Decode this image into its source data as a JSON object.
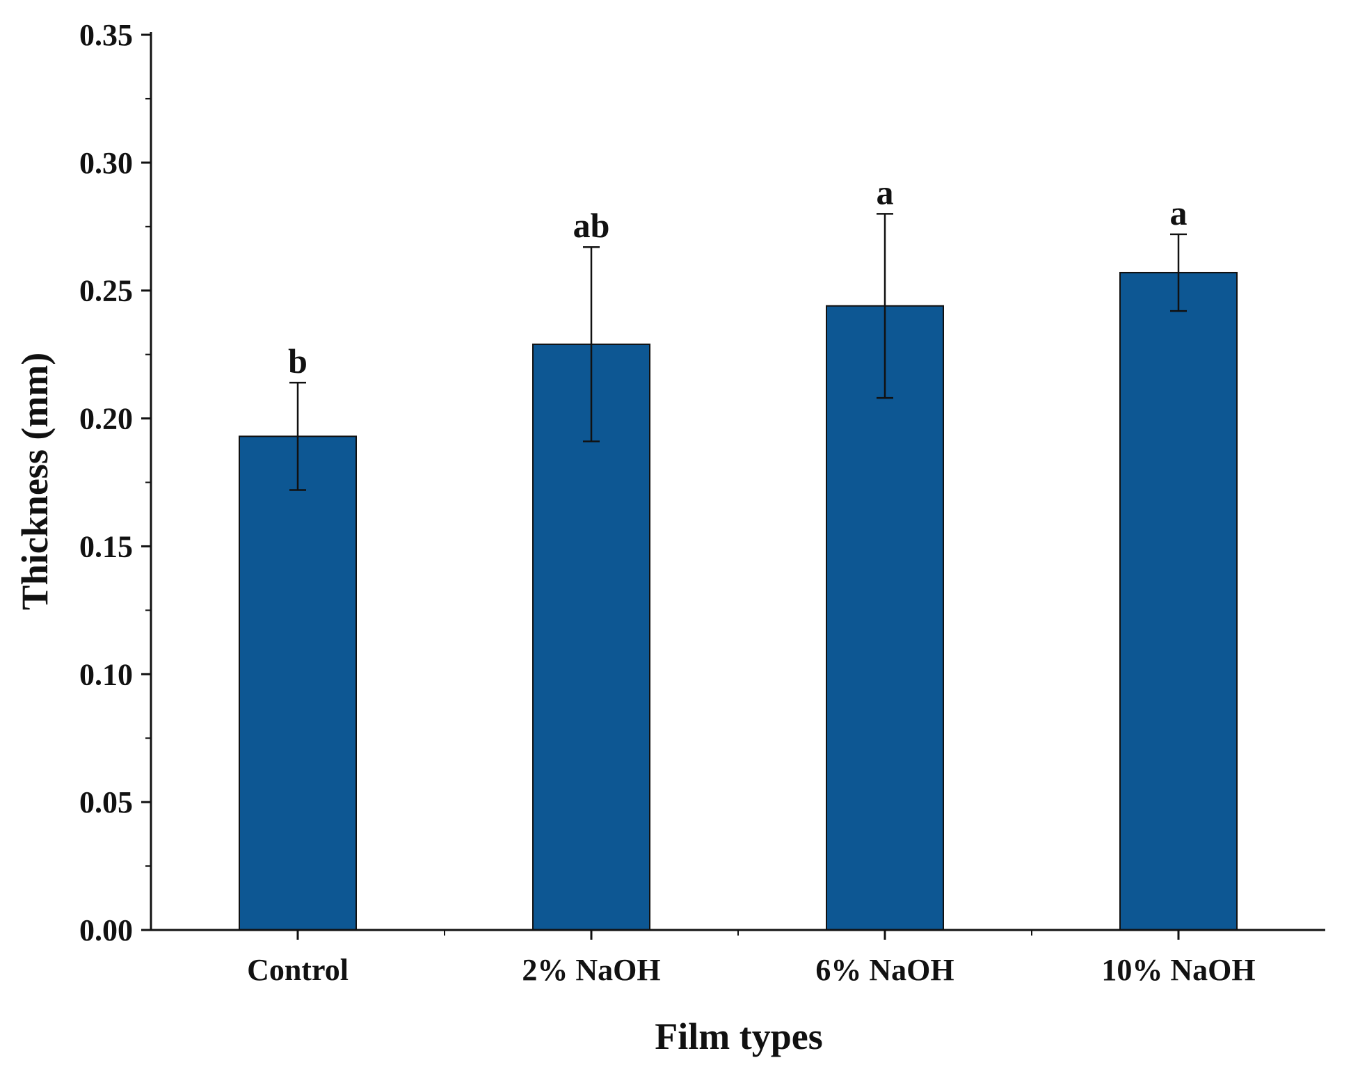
{
  "chart_data": {
    "type": "bar",
    "xlabel": "Film types",
    "ylabel": "Thickness (mm)",
    "categories": [
      "Control",
      "2% NaOH",
      "6% NaOH",
      "10% NaOH"
    ],
    "values": [
      0.193,
      0.229,
      0.244,
      0.257
    ],
    "error": [
      0.021,
      0.038,
      0.036,
      0.015
    ],
    "significance": [
      "b",
      "ab",
      "a",
      "a"
    ],
    "ylim": [
      0,
      0.35
    ],
    "yticks": [
      0.0,
      0.05,
      0.1,
      0.15,
      0.2,
      0.25,
      0.3,
      0.35
    ],
    "ytick_labels": [
      "0.00",
      "0.05",
      "0.10",
      "0.15",
      "0.20",
      "0.25",
      "0.30",
      "0.35"
    ],
    "grid": false,
    "legend": "none",
    "bar_color": "#0d5793"
  }
}
